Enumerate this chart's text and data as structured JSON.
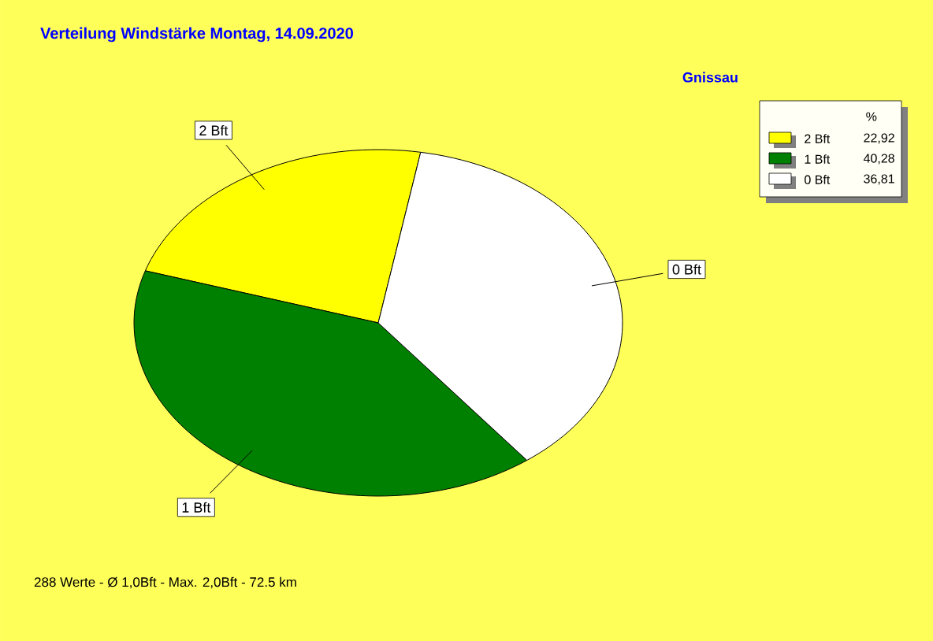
{
  "chart_data": {
    "type": "pie",
    "title": "Verteilung Windstärke  Montag, 14.09.2020",
    "subtitle": "Gnissau",
    "legend_title": "%",
    "categories": [
      "2 Bft",
      "1 Bft",
      "0 Bft"
    ],
    "values": [
      22.92,
      40.28,
      36.81
    ],
    "value_labels": [
      "22,92",
      "40,28",
      "36,81"
    ],
    "colors": [
      "#ffff00",
      "#008000",
      "#ffffff"
    ],
    "legend": "top right",
    "annotations": [
      "288 Werte   -   Ø 1,0Bft  -  Max. 2,0Bft   -   72.5 km"
    ]
  }
}
